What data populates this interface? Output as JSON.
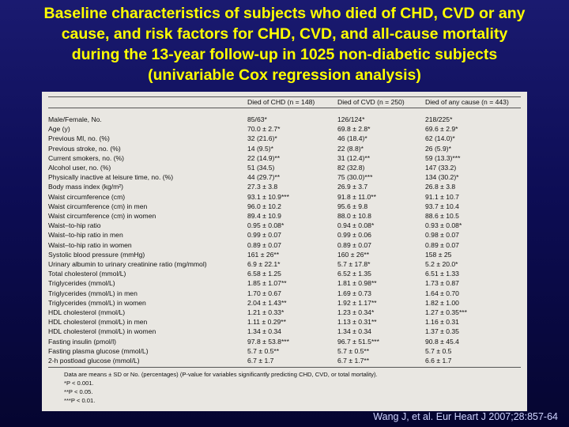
{
  "title": {
    "lines": [
      "Baseline characteristics of subjects who died of CHD, CVD or any",
      "cause, and risk factors for CHD, CVD, and all-cause mortality",
      "during the 13-year follow-up in 1025 non-diabetic subjects",
      "(univariable Cox regression analysis)"
    ]
  },
  "table": {
    "headers": [
      "",
      "Died of CHD (n = 148)",
      "Died of CVD (n = 250)",
      "Died of any cause (n = 443)"
    ],
    "rows": [
      [
        "Male/Female, No.",
        "85/63*",
        "126/124*",
        "218/225*"
      ],
      [
        "Age (y)",
        "70.0 ± 2.7*",
        "69.8 ± 2.8*",
        "69.6 ± 2.9*"
      ],
      [
        "Previous MI, no. (%)",
        "32 (21.6)*",
        "46 (18.4)*",
        "62 (14.0)*"
      ],
      [
        "Previous stroke, no. (%)",
        "14 (9.5)*",
        "22 (8.8)*",
        "26 (5.9)*"
      ],
      [
        "Current smokers, no. (%)",
        "22 (14.9)**",
        "31 (12.4)**",
        "59 (13.3)***"
      ],
      [
        "Alcohol user, no. (%)",
        "51 (34.5)",
        "82 (32.8)",
        "147 (33.2)"
      ],
      [
        "Physically inactive at leisure time, no. (%)",
        "44 (29.7)**",
        "75 (30.0)***",
        "134 (30.2)*"
      ],
      [
        "Body mass index (kg/m²)",
        "27.3 ± 3.8",
        "26.9 ± 3.7",
        "26.8 ± 3.8"
      ],
      [
        "Waist circumference (cm)",
        "93.1 ± 10.9***",
        "91.8 ± 11.0**",
        "91.1 ± 10.7"
      ],
      [
        "Waist circumference (cm) in men",
        "96.0 ± 10.2",
        "95.6 ± 9.8",
        "93.7 ± 10.4"
      ],
      [
        "Waist circumference (cm) in women",
        "89.4 ± 10.9",
        "88.0 ± 10.8",
        "88.6 ± 10.5"
      ],
      [
        "Waist–to-hip ratio",
        "0.95 ± 0.08*",
        "0.94 ± 0.08*",
        "0.93 ± 0.08*"
      ],
      [
        "Waist–to-hip ratio in men",
        "0.99 ± 0.07",
        "0.99 ± 0.06",
        "0.98 ± 0.07"
      ],
      [
        "Waist–to-hip ratio in women",
        "0.89 ± 0.07",
        "0.89 ± 0.07",
        "0.89 ± 0.07"
      ],
      [
        "Systolic blood pressure (mmHg)",
        "161 ± 26**",
        "160 ± 26**",
        "158 ± 25"
      ],
      [
        "Urinary albumin to urinary creatinine ratio (mg/mmol)",
        "6.9 ± 22.1*",
        "5.7 ± 17.8*",
        "5.2 ± 20.0*"
      ],
      [
        "Total cholesterol (mmol/L)",
        "6.58 ± 1.25",
        "6.52 ± 1.35",
        "6.51 ± 1.33"
      ],
      [
        "Triglycerides (mmol/L)",
        "1.85 ± 1.07**",
        "1.81 ± 0.98**",
        "1.73 ± 0.87"
      ],
      [
        "Triglycerides (mmol/L) in men",
        "1.70 ± 0.67",
        "1.69 ± 0.73",
        "1.64 ± 0.70"
      ],
      [
        "Triglycerides (mmol/L) in women",
        "2.04 ± 1.43**",
        "1.92 ± 1.17**",
        "1.82 ± 1.00"
      ],
      [
        "HDL cholesterol (mmol/L)",
        "1.21 ± 0.33*",
        "1.23 ± 0.34*",
        "1.27 ± 0.35***"
      ],
      [
        "HDL cholesterol (mmol/L) in men",
        "1.11 ± 0.29**",
        "1.13 ± 0.31**",
        "1.16 ± 0.31"
      ],
      [
        "HDL cholesterol (mmol/L) in women",
        "1.34 ± 0.34",
        "1.34 ± 0.34",
        "1.37 ± 0.35"
      ],
      [
        "Fasting insulin (pmol/l)",
        "97.8 ± 53.8***",
        "96.7 ± 51.5***",
        "90.8 ± 45.4"
      ],
      [
        "Fasting plasma glucose (mmol/L)",
        "5.7 ± 0.5**",
        "5.7 ± 0.5**",
        "5.7 ± 0.5"
      ],
      [
        "2-h postload glucose (mmol/L)",
        "6.7 ± 1.7",
        "6.7 ± 1.7**",
        "6.6 ± 1.7"
      ]
    ],
    "footnotes": [
      "Data are means ± SD or No. (percentages) (P-value for variables significantly predicting CHD, CVD, or total mortality).",
      "*P < 0.001.",
      "**P < 0.05.",
      "***P < 0.01."
    ]
  },
  "citation": "Wang J, et al. Eur Heart J 2007;28:857-64"
}
